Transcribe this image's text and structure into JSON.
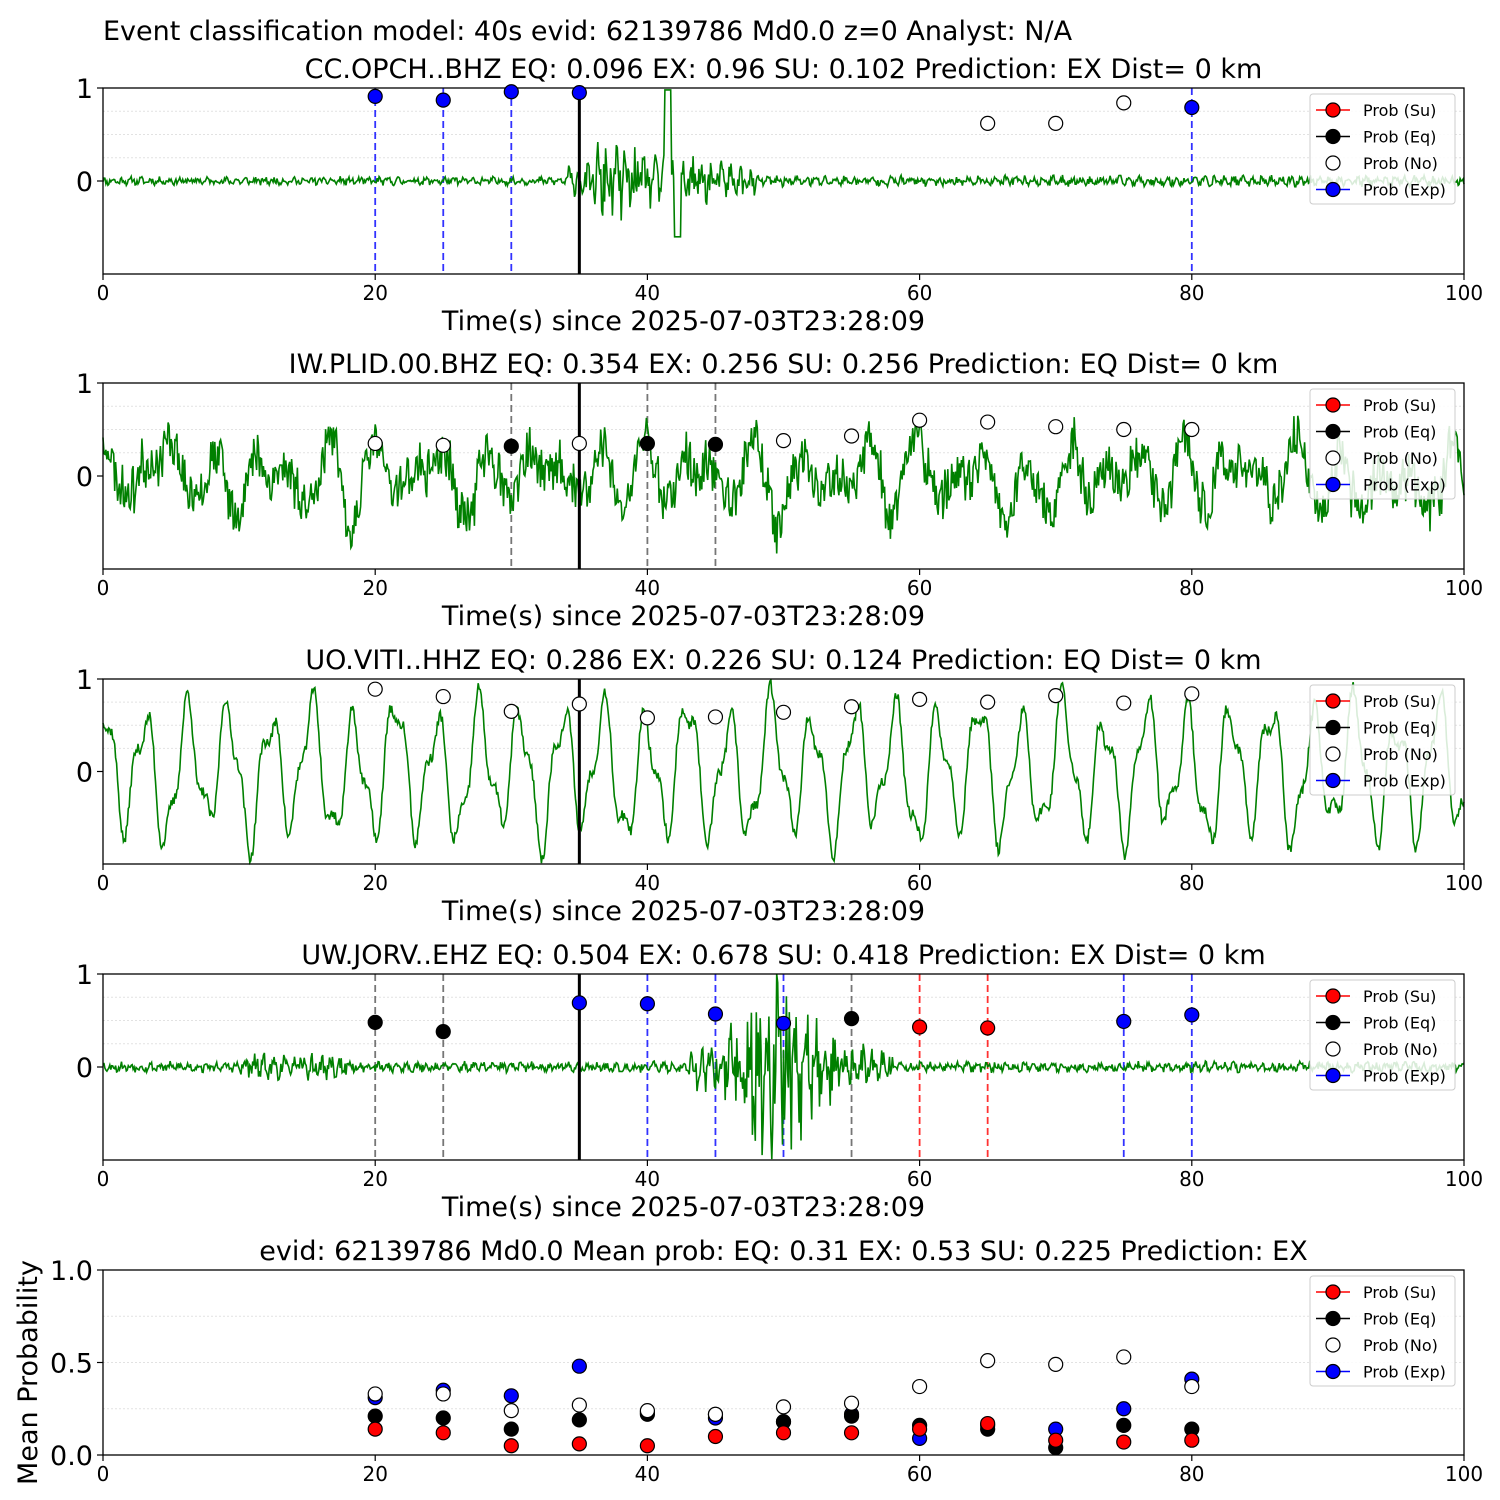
{
  "figure": {
    "suptitle": "Event classification model: 40s evid: 62139786 Md0.0 z=0 Analyst: N/A"
  },
  "chart_data": [
    {
      "type": "scatter",
      "title": "CC.OPCH..BHZ   EQ: 0.096  EX: 0.96  SU: 0.102   Prediction: EX    Dist= 0 km",
      "xlabel": "Time(s) since 2025-07-03T23:28:09",
      "ylabel": "",
      "xlim": [
        0,
        100
      ],
      "xticks": [
        0,
        20,
        40,
        60,
        80,
        100
      ],
      "yticks": [
        0,
        1
      ],
      "ylim": [
        -1,
        1
      ],
      "colors": {
        "Su": "#ff0000",
        "Eq": "#000000",
        "No": "#ffffff",
        "Exp": "#0000ff",
        "trace": "#008000"
      },
      "legend": {
        "position": "top-right",
        "entries": [
          "Prob (Su)",
          "Prob (Eq)",
          "Prob (No)",
          "Prob (Exp)"
        ]
      },
      "onset": 35,
      "waveform": {
        "style": "explosion",
        "seed": 11
      },
      "markers": [
        {
          "x": 20,
          "y": 0.91,
          "cls": "Exp"
        },
        {
          "x": 25,
          "y": 0.87,
          "cls": "Exp"
        },
        {
          "x": 30,
          "y": 0.96,
          "cls": "Exp"
        },
        {
          "x": 35,
          "y": 0.95,
          "cls": "Exp"
        },
        {
          "x": 65,
          "y": 0.62,
          "cls": "No"
        },
        {
          "x": 70,
          "y": 0.62,
          "cls": "No"
        },
        {
          "x": 75,
          "y": 0.84,
          "cls": "No"
        },
        {
          "x": 80,
          "y": 0.79,
          "cls": "Exp"
        }
      ]
    },
    {
      "type": "scatter",
      "title": "IW.PLID.00.BHZ   EQ: 0.354  EX: 0.256  SU: 0.256   Prediction: EQ    Dist= 0 km",
      "xlabel": "Time(s) since 2025-07-03T23:28:09",
      "ylabel": "",
      "xlim": [
        0,
        100
      ],
      "xticks": [
        0,
        20,
        40,
        60,
        80,
        100
      ],
      "yticks": [
        0,
        1
      ],
      "ylim": [
        -1,
        1
      ],
      "colors": {
        "Su": "#ff0000",
        "Eq": "#000000",
        "No": "#ffffff",
        "Exp": "#0000ff",
        "trace": "#008000"
      },
      "legend": {
        "position": "top-right",
        "entries": [
          "Prob (Su)",
          "Prob (Eq)",
          "Prob (No)",
          "Prob (Exp)"
        ]
      },
      "onset": 35,
      "waveform": {
        "style": "noisy",
        "seed": 23
      },
      "markers": [
        {
          "x": 20,
          "y": 0.35,
          "cls": "No"
        },
        {
          "x": 25,
          "y": 0.33,
          "cls": "No"
        },
        {
          "x": 30,
          "y": 0.32,
          "cls": "Eq"
        },
        {
          "x": 35,
          "y": 0.35,
          "cls": "No"
        },
        {
          "x": 40,
          "y": 0.35,
          "cls": "Eq"
        },
        {
          "x": 45,
          "y": 0.34,
          "cls": "Eq"
        },
        {
          "x": 50,
          "y": 0.38,
          "cls": "No"
        },
        {
          "x": 55,
          "y": 0.43,
          "cls": "No"
        },
        {
          "x": 60,
          "y": 0.6,
          "cls": "No"
        },
        {
          "x": 65,
          "y": 0.58,
          "cls": "No"
        },
        {
          "x": 70,
          "y": 0.53,
          "cls": "No"
        },
        {
          "x": 75,
          "y": 0.5,
          "cls": "No"
        },
        {
          "x": 80,
          "y": 0.5,
          "cls": "No"
        }
      ]
    },
    {
      "type": "scatter",
      "title": "UO.VITI..HHZ   EQ: 0.286  EX: 0.226  SU: 0.124   Prediction: EQ    Dist= 0 km",
      "xlabel": "Time(s) since 2025-07-03T23:28:09",
      "ylabel": "",
      "xlim": [
        0,
        100
      ],
      "xticks": [
        0,
        20,
        40,
        60,
        80,
        100
      ],
      "yticks": [
        0,
        1
      ],
      "ylim": [
        -1,
        1
      ],
      "colors": {
        "Su": "#ff0000",
        "Eq": "#000000",
        "No": "#ffffff",
        "Exp": "#0000ff",
        "trace": "#008000"
      },
      "legend": {
        "position": "top-right",
        "entries": [
          "Prob (Su)",
          "Prob (Eq)",
          "Prob (No)",
          "Prob (Exp)"
        ]
      },
      "onset": 35,
      "waveform": {
        "style": "oscillating",
        "seed": 37
      },
      "markers": [
        {
          "x": 20,
          "y": 0.89,
          "cls": "No"
        },
        {
          "x": 25,
          "y": 0.81,
          "cls": "No"
        },
        {
          "x": 30,
          "y": 0.65,
          "cls": "No"
        },
        {
          "x": 35,
          "y": 0.73,
          "cls": "No"
        },
        {
          "x": 40,
          "y": 0.58,
          "cls": "No"
        },
        {
          "x": 45,
          "y": 0.59,
          "cls": "No"
        },
        {
          "x": 50,
          "y": 0.64,
          "cls": "No"
        },
        {
          "x": 55,
          "y": 0.7,
          "cls": "No"
        },
        {
          "x": 60,
          "y": 0.78,
          "cls": "No"
        },
        {
          "x": 65,
          "y": 0.75,
          "cls": "No"
        },
        {
          "x": 70,
          "y": 0.82,
          "cls": "No"
        },
        {
          "x": 75,
          "y": 0.74,
          "cls": "No"
        },
        {
          "x": 80,
          "y": 0.84,
          "cls": "No"
        }
      ]
    },
    {
      "type": "scatter",
      "title": "UW.JORV..EHZ   EQ: 0.504  EX: 0.678  SU: 0.418   Prediction: EX    Dist= 0 km",
      "xlabel": "Time(s) since 2025-07-03T23:28:09",
      "ylabel": "",
      "xlim": [
        0,
        100
      ],
      "xticks": [
        0,
        20,
        40,
        60,
        80,
        100
      ],
      "yticks": [
        0,
        1
      ],
      "ylim": [
        -1,
        1
      ],
      "colors": {
        "Su": "#ff0000",
        "Eq": "#000000",
        "No": "#ffffff",
        "Exp": "#0000ff",
        "trace": "#008000"
      },
      "legend": {
        "position": "top-right",
        "entries": [
          "Prob (Su)",
          "Prob (Eq)",
          "Prob (No)",
          "Prob (Exp)"
        ]
      },
      "onset": 35,
      "waveform": {
        "style": "burst",
        "seed": 53
      },
      "markers": [
        {
          "x": 20,
          "y": 0.48,
          "cls": "Eq"
        },
        {
          "x": 25,
          "y": 0.38,
          "cls": "Eq"
        },
        {
          "x": 35,
          "y": 0.69,
          "cls": "Exp"
        },
        {
          "x": 40,
          "y": 0.68,
          "cls": "Exp"
        },
        {
          "x": 45,
          "y": 0.57,
          "cls": "Exp"
        },
        {
          "x": 50,
          "y": 0.47,
          "cls": "Exp"
        },
        {
          "x": 55,
          "y": 0.52,
          "cls": "Eq"
        },
        {
          "x": 60,
          "y": 0.43,
          "cls": "Su"
        },
        {
          "x": 65,
          "y": 0.42,
          "cls": "Su"
        },
        {
          "x": 75,
          "y": 0.49,
          "cls": "Exp"
        },
        {
          "x": 80,
          "y": 0.56,
          "cls": "Exp"
        }
      ]
    },
    {
      "type": "scatter",
      "title": "evid: 62139786  Md0.0   Mean prob:   EQ: 0.31  EX: 0.53  SU: 0.225   Prediction: EX",
      "xlabel": "",
      "ylabel": "Mean Probability",
      "xlim": [
        0,
        100
      ],
      "xticks": [
        0,
        20,
        40,
        60,
        80,
        100
      ],
      "yticks": [
        0.0,
        0.5,
        1.0
      ],
      "yticklabels": [
        "0.0",
        "0.5",
        "1.0"
      ],
      "ylim": [
        0,
        1
      ],
      "colors": {
        "Su": "#ff0000",
        "Eq": "#000000",
        "No": "#ffffff",
        "Exp": "#0000ff"
      },
      "legend": {
        "position": "top-right",
        "entries": [
          "Prob (Su)",
          "Prob (Eq)",
          "Prob (No)",
          "Prob (Exp)"
        ]
      },
      "series": [
        {
          "name": "Prob (Exp)",
          "cls": "Exp",
          "x": [
            20,
            25,
            30,
            35,
            40,
            45,
            50,
            55,
            60,
            65,
            70,
            75,
            80
          ],
          "y": [
            0.31,
            0.35,
            0.32,
            0.48,
            0.23,
            0.2,
            0.18,
            0.22,
            0.09,
            0.16,
            0.14,
            0.25,
            0.41
          ]
        },
        {
          "name": "Prob (Eq)",
          "cls": "Eq",
          "x": [
            20,
            25,
            30,
            35,
            40,
            45,
            50,
            55,
            60,
            65,
            70,
            75,
            80
          ],
          "y": [
            0.21,
            0.2,
            0.14,
            0.19,
            0.22,
            0.22,
            0.18,
            0.21,
            0.16,
            0.14,
            0.04,
            0.16,
            0.14
          ]
        },
        {
          "name": "Prob (Su)",
          "cls": "Su",
          "x": [
            20,
            25,
            30,
            35,
            40,
            45,
            50,
            55,
            60,
            65,
            70,
            75,
            80
          ],
          "y": [
            0.14,
            0.12,
            0.05,
            0.06,
            0.05,
            0.1,
            0.12,
            0.12,
            0.14,
            0.17,
            0.08,
            0.07,
            0.08
          ]
        },
        {
          "name": "Prob (No)",
          "cls": "No",
          "x": [
            20,
            25,
            30,
            35,
            40,
            45,
            50,
            55,
            60,
            65,
            70,
            75,
            80
          ],
          "y": [
            0.33,
            0.33,
            0.24,
            0.27,
            0.24,
            0.22,
            0.26,
            0.28,
            0.37,
            0.51,
            0.49,
            0.53,
            0.37
          ]
        }
      ]
    }
  ]
}
